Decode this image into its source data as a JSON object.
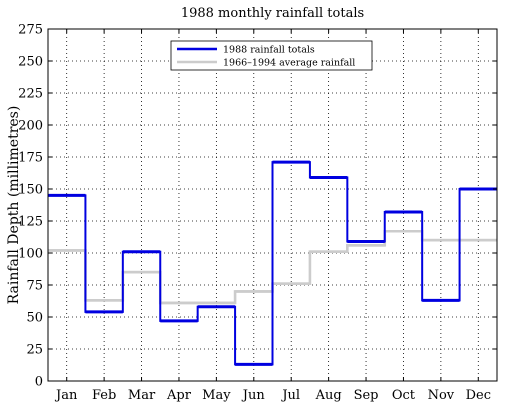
{
  "chart_data": {
    "type": "line",
    "step": true,
    "title": "1988 monthly rainfall totals",
    "xlabel": "",
    "ylabel": "Rainfall Depth (millimetres)",
    "categories": [
      "Jan",
      "Feb",
      "Mar",
      "Apr",
      "May",
      "Jun",
      "Jul",
      "Aug",
      "Sep",
      "Oct",
      "Nov",
      "Dec"
    ],
    "ylim": [
      0,
      275
    ],
    "yticks": [
      0,
      25,
      50,
      75,
      100,
      125,
      150,
      175,
      200,
      225,
      250,
      275
    ],
    "grid": true,
    "legend_position": "top-center",
    "series": [
      {
        "name": "1988 rainfall totals",
        "color": "#0000e0",
        "values": [
          145,
          54,
          101,
          47,
          58,
          13,
          171,
          159,
          109,
          132,
          63,
          150
        ]
      },
      {
        "name": "1966–1994 average rainfall",
        "color": "#cccccc",
        "values": [
          102,
          63,
          85,
          61,
          61,
          70,
          76,
          101,
          106,
          117,
          110,
          110
        ]
      }
    ]
  }
}
